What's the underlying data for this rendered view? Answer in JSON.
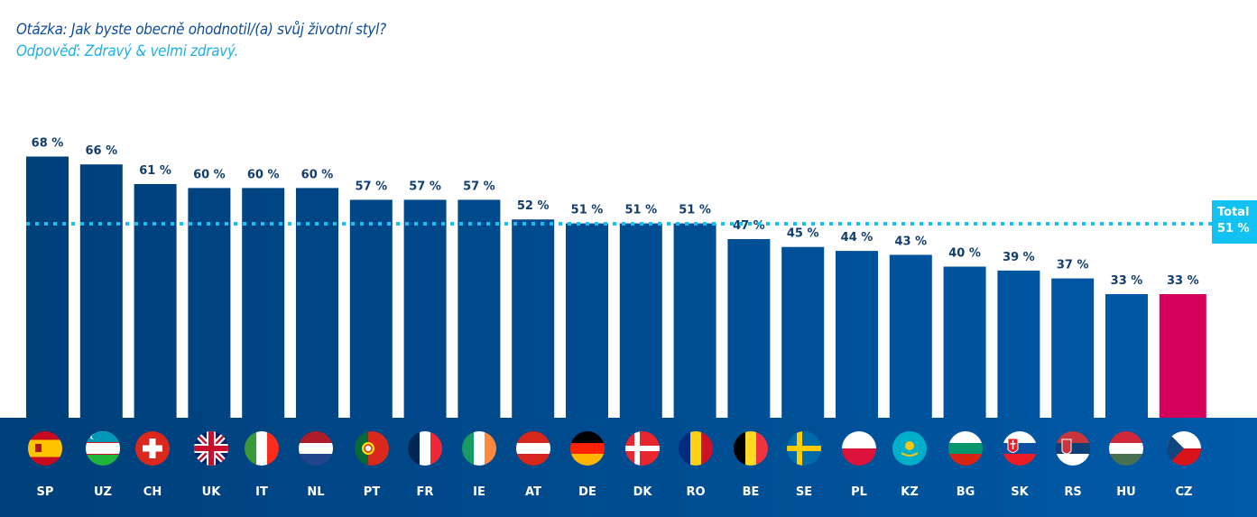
{
  "header": {
    "question": "Otázka: Jak byste obecně ohodnotil/(a) svůj životní styl?",
    "answer": "Odpověď: Zdravý & velmi zdravý."
  },
  "total": {
    "label": "Total",
    "value_label": "51 %",
    "value": 51,
    "color": "#13c1f2"
  },
  "colors": {
    "bar_left": "#003f7a",
    "bar_right": "#005aa8",
    "highlight": "#d6005c",
    "label_text": "#123e6e"
  },
  "chart_data": {
    "type": "bar",
    "title": "Otázka: Jak byste obecně ohodnotil/(a) svůj životní styl?",
    "subtitle": "Odpověď: Zdravý & velmi zdravý.",
    "xlabel": "",
    "ylabel": "",
    "unit": "%",
    "ylim": [
      0,
      70
    ],
    "grid": false,
    "legend": "none",
    "categories": [
      "SP",
      "UZ",
      "CH",
      "UK",
      "IT",
      "NL",
      "PT",
      "FR",
      "IE",
      "AT",
      "DE",
      "DK",
      "RO",
      "BE",
      "SE",
      "PL",
      "KZ",
      "BG",
      "SK",
      "RS",
      "HU",
      "CZ"
    ],
    "values": [
      68,
      66,
      61,
      60,
      60,
      60,
      57,
      57,
      57,
      52,
      51,
      51,
      51,
      47,
      45,
      44,
      43,
      40,
      39,
      37,
      33,
      33
    ],
    "value_labels": [
      "68 %",
      "66 %",
      "61 %",
      "60 %",
      "60 %",
      "60 %",
      "57 %",
      "57 %",
      "57 %",
      "52 %",
      "51 %",
      "51 %",
      "51 %",
      "47 %",
      "45 %",
      "44 %",
      "43 %",
      "40 %",
      "39 %",
      "37 %",
      "33 %",
      "33 %"
    ],
    "highlighted_category": "CZ",
    "reference_line": {
      "label": "Total 51 %",
      "value": 51,
      "style": "dotted"
    },
    "flags": [
      "spain",
      "uzbekistan",
      "switzerland",
      "united-kingdom",
      "italy",
      "netherlands",
      "portugal",
      "france",
      "ireland",
      "austria",
      "germany",
      "denmark",
      "romania",
      "belgium",
      "sweden",
      "poland",
      "kazakhstan",
      "bulgaria",
      "slovakia",
      "serbia",
      "hungary",
      "czechia"
    ]
  }
}
